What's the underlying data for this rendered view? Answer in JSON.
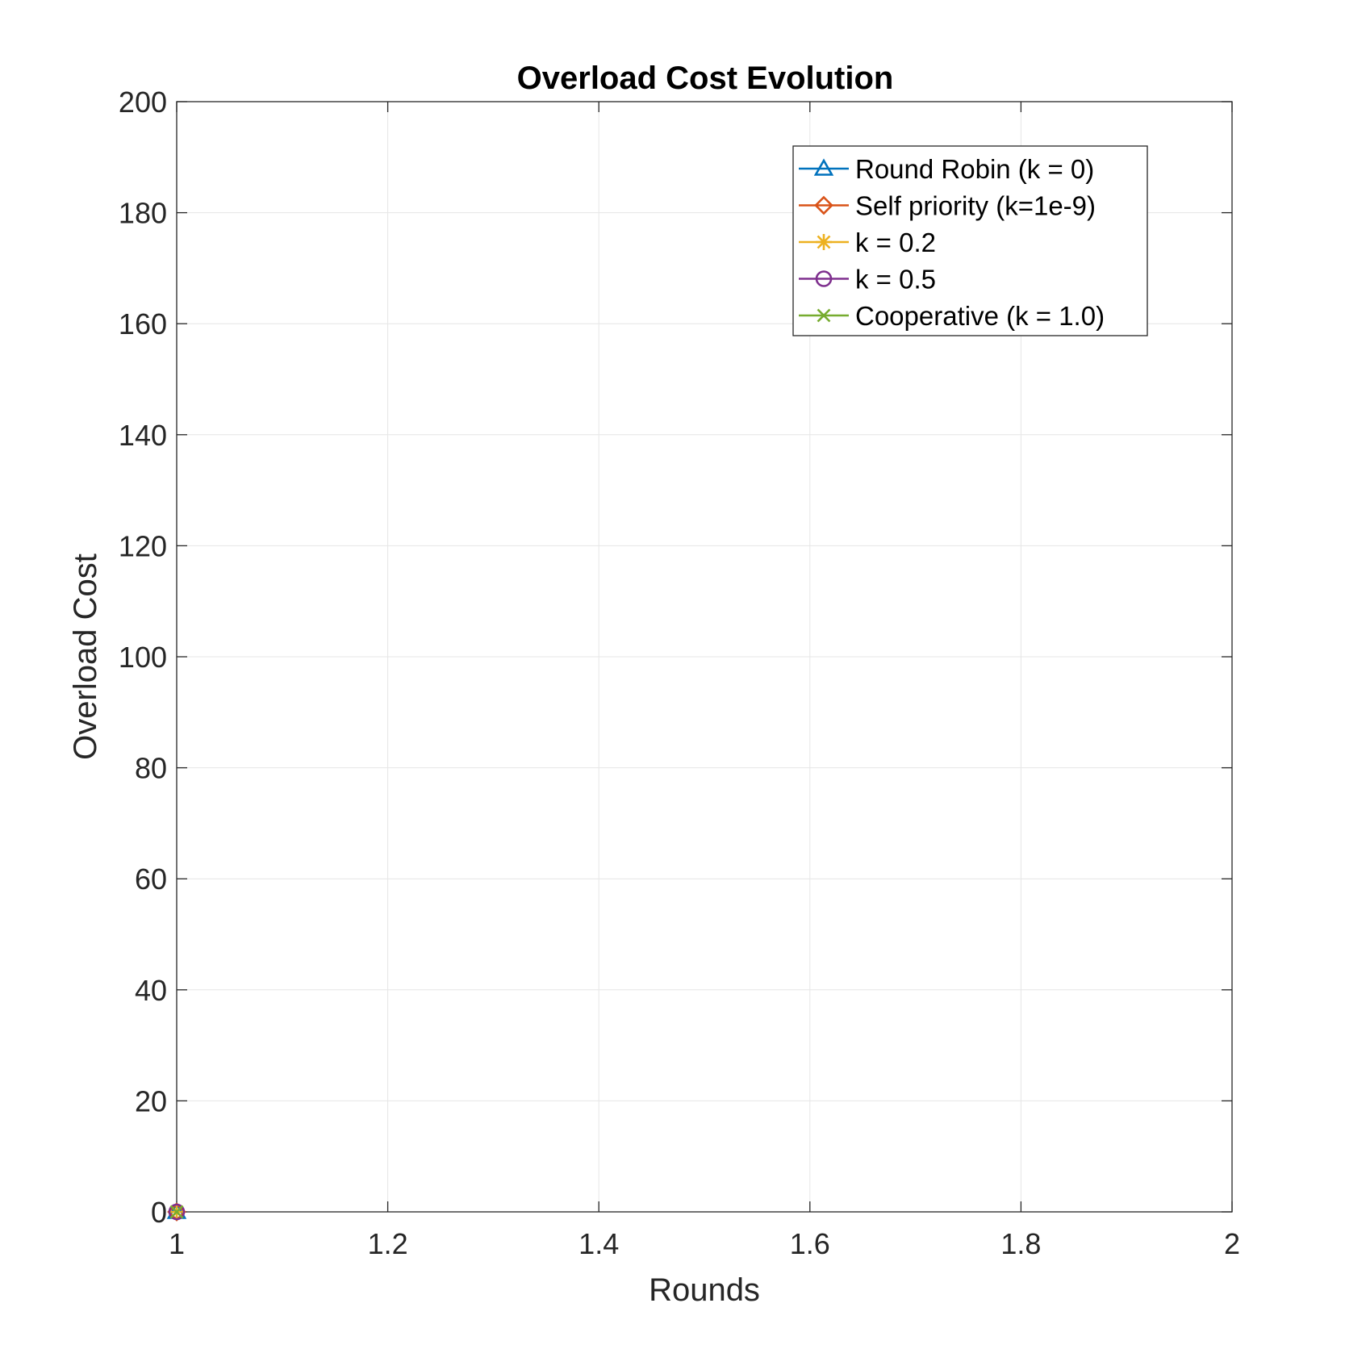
{
  "chart_data": {
    "type": "line",
    "title": "Overload Cost Evolution",
    "xlabel": "Rounds",
    "ylabel": "Overload Cost",
    "xlim": [
      1,
      2
    ],
    "ylim": [
      0,
      200
    ],
    "xticks": [
      1,
      1.2,
      1.4,
      1.6,
      1.8,
      2
    ],
    "xtick_labels": [
      "1",
      "1.2",
      "1.4",
      "1.6",
      "1.8",
      "2"
    ],
    "yticks": [
      0,
      20,
      40,
      60,
      80,
      100,
      120,
      140,
      160,
      180,
      200
    ],
    "ytick_labels": [
      "0",
      "20",
      "40",
      "60",
      "80",
      "100",
      "120",
      "140",
      "160",
      "180",
      "200"
    ],
    "grid": true,
    "legend_position": "top-right",
    "series": [
      {
        "name": "Round Robin (k = 0)",
        "color": "#0072BD",
        "marker": "triangle",
        "points": [
          [
            1,
            0
          ]
        ]
      },
      {
        "name": "Self priority (k=1e-9)",
        "color": "#D95319",
        "marker": "diamond",
        "points": [
          [
            1,
            0
          ]
        ]
      },
      {
        "name": "k = 0.2",
        "color": "#EDB120",
        "marker": "asterisk",
        "points": [
          [
            1,
            0
          ]
        ]
      },
      {
        "name": "k = 0.5",
        "color": "#7E2F8E",
        "marker": "circle",
        "points": [
          [
            1,
            0
          ]
        ]
      },
      {
        "name": "Cooperative (k = 1.0)",
        "color": "#77AC30",
        "marker": "x",
        "points": [
          [
            1,
            0
          ]
        ]
      }
    ]
  }
}
